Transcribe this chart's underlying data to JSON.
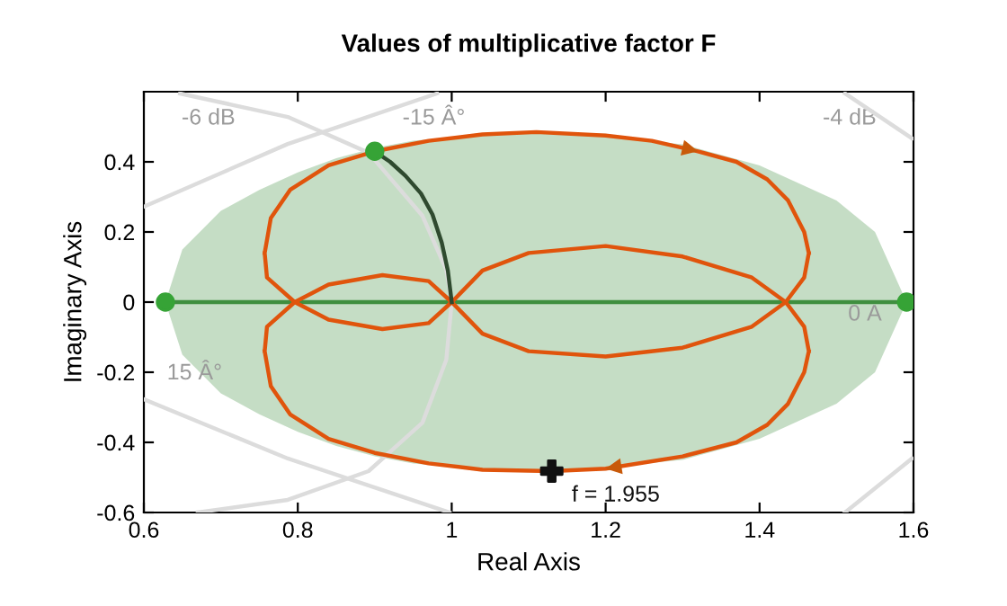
{
  "chart_data": {
    "type": "line",
    "title": "Values of multiplicative factor F",
    "xlabel": "Real Axis",
    "ylabel": "Imaginary Axis",
    "xlim": [
      0.6,
      1.6
    ],
    "ylim": [
      -0.6,
      0.6
    ],
    "xticks": [
      0.6,
      0.8,
      1,
      1.2,
      1.4,
      1.6
    ],
    "yticks": [
      -0.6,
      -0.4,
      -0.2,
      0,
      0.2,
      0.4
    ],
    "grid": false,
    "legend": false,
    "marker": "none",
    "annotations": [
      "-6 dB",
      "-15 Â°",
      "-4 dB",
      "0 Â",
      "15 Â°"
    ],
    "series": [
      {
        "type": "line",
        "color": "#dcdcdc",
        "x": [
          0.647,
          0.787,
          0.892,
          0.962,
          0.993,
          1.0,
          0.993,
          0.962,
          0.892,
          0.787,
          0.67
        ],
        "values": [
          0.595,
          0.528,
          0.426,
          0.246,
          0.092,
          0,
          -0.164,
          -0.344,
          -0.482,
          -0.564,
          -0.6
        ]
      },
      {
        "type": "line",
        "color": "#dcdcdc",
        "x": [
          0.6,
          0.787,
          0.981
        ],
        "values": [
          0.272,
          0.451,
          0.595
        ]
      },
      {
        "type": "line",
        "color": "#dcdcdc",
        "x": [
          0.6,
          0.787,
          0.997
        ],
        "values": [
          -0.277,
          -0.446,
          -0.6
        ]
      },
      {
        "type": "line",
        "color": "#dcdcdc",
        "x": [
          1.511,
          1.598
        ],
        "values": [
          0.595,
          0.467
        ]
      },
      {
        "type": "line",
        "color": "#dcdcdc",
        "x": [
          1.511,
          1.598
        ],
        "values": [
          -0.6,
          -0.446
        ]
      },
      {
        "color": "#3f8f3f",
        "x": [
          0.628,
          0.65,
          0.7,
          0.75,
          0.8,
          0.85,
          0.9,
          0.95,
          1.0,
          1.05,
          1.11,
          1.15,
          1.2,
          1.25,
          1.3,
          1.35,
          1.4,
          1.45,
          1.5,
          1.55,
          1.591
        ],
        "values": [
          0,
          0,
          0,
          0,
          0,
          0,
          0,
          0,
          0,
          0,
          0,
          0,
          0,
          0,
          0,
          0,
          0,
          0,
          0,
          0,
          0
        ],
        "upper": [
          0,
          0.15,
          0.26,
          0.32,
          0.37,
          0.41,
          0.44,
          0.46,
          0.47,
          0.48,
          0.485,
          0.48,
          0.48,
          0.46,
          0.45,
          0.42,
          0.39,
          0.34,
          0.29,
          0.2,
          0
        ],
        "lower": [
          0,
          -0.15,
          -0.26,
          -0.32,
          -0.37,
          -0.41,
          -0.44,
          -0.46,
          -0.47,
          -0.48,
          -0.485,
          -0.48,
          -0.48,
          -0.46,
          -0.45,
          -0.42,
          -0.39,
          -0.34,
          -0.29,
          -0.2,
          0
        ]
      },
      {
        "color": "#e0540c",
        "x": [
          0.757,
          0.765,
          0.79,
          0.84,
          0.9,
          0.97,
          1.04,
          1.11,
          1.2,
          1.26,
          1.32,
          1.37,
          1.41,
          1.437,
          1.458,
          1.464,
          null,
          1.464,
          1.458,
          1.437,
          1.41,
          1.37,
          1.3,
          1.2,
          1.13,
          1.04,
          0.97,
          0.9,
          0.84,
          0.79,
          0.765,
          0.757,
          null,
          0.757,
          0.76,
          0.796,
          0.84,
          0.91,
          0.97,
          1.0,
          null,
          0.757,
          0.76,
          0.796,
          0.84,
          0.91,
          0.97,
          1.0,
          null,
          1.0,
          1.04,
          1.1,
          1.2,
          1.3,
          1.39,
          1.434,
          1.458,
          1.464,
          null,
          1.0,
          1.04,
          1.1,
          1.2,
          1.3,
          1.39,
          1.434,
          1.458,
          1.464
        ],
        "values": [
          0.14,
          0.24,
          0.32,
          0.39,
          0.43,
          0.46,
          0.478,
          0.485,
          0.475,
          0.46,
          0.43,
          0.4,
          0.35,
          0.29,
          0.2,
          0.14,
          null,
          -0.14,
          -0.2,
          -0.29,
          -0.35,
          -0.4,
          -0.44,
          -0.475,
          -0.482,
          -0.478,
          -0.46,
          -0.43,
          -0.39,
          -0.32,
          -0.24,
          -0.14,
          null,
          0.14,
          0.07,
          0,
          -0.05,
          -0.077,
          -0.06,
          0,
          null,
          -0.14,
          -0.07,
          0,
          0.05,
          0.077,
          0.06,
          0,
          null,
          0,
          -0.09,
          -0.14,
          -0.155,
          -0.13,
          -0.07,
          0,
          0.07,
          0.14,
          null,
          0,
          0.09,
          0.14,
          0.16,
          0.13,
          0.07,
          0,
          -0.07,
          -0.14
        ]
      },
      {
        "color": "#2f4a2f",
        "x": [
          0.9,
          0.92,
          0.94,
          0.96,
          0.975,
          0.987,
          0.995,
          1.0
        ],
        "values": [
          0.43,
          0.4,
          0.36,
          0.31,
          0.25,
          0.17,
          0.09,
          0
        ]
      },
      {
        "type": "scatter",
        "color": "#36a336",
        "marker": "circle",
        "x": [
          0.628,
          0.9,
          1.591
        ],
        "values": [
          0,
          0.43,
          0
        ]
      },
      {
        "type": "scatter",
        "name": "f = 1.955",
        "color": "#111111",
        "marker": "cross",
        "x": [
          1.13
        ],
        "values": [
          -0.482
        ]
      }
    ]
  }
}
